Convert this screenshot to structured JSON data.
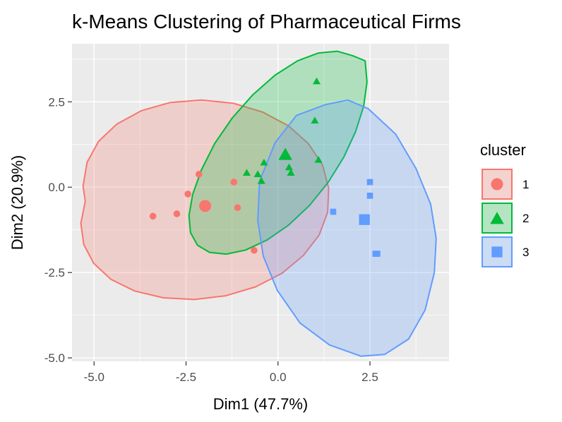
{
  "chart_data": {
    "type": "scatter",
    "title": "k-Means Clustering of Pharmaceutical Firms",
    "xlabel": "Dim1 (47.7%)",
    "ylabel": "Dim2 (20.9%)",
    "xlim": [
      -5.6,
      4.65
    ],
    "ylim": [
      -5.1,
      4.2
    ],
    "xticks": [
      -5.0,
      -2.5,
      0.0,
      2.5
    ],
    "xtick_labels": [
      "-5.0",
      "-2.5",
      "0.0",
      "2.5"
    ],
    "yticks": [
      -5.0,
      -2.5,
      0.0,
      2.5
    ],
    "ytick_labels": [
      "-5.0",
      "-2.5",
      "0.0",
      "2.5"
    ],
    "grid": true,
    "legend": {
      "title": "cluster",
      "position": "right"
    },
    "series": [
      {
        "name": "1",
        "color": "#F8766D",
        "marker": "circle",
        "points": [
          [
            -3.4,
            -0.85
          ],
          [
            -2.75,
            -0.78
          ],
          [
            -2.45,
            -0.2
          ],
          [
            -2.15,
            0.38
          ],
          [
            -1.2,
            0.15
          ],
          [
            -1.1,
            -0.6
          ],
          [
            -0.65,
            -1.85
          ]
        ],
        "center": [
          -1.98,
          -0.55
        ],
        "ellipse": [
          [
            -5.3,
            0.03
          ],
          [
            -5.19,
            0.73
          ],
          [
            -4.88,
            1.34
          ],
          [
            -4.38,
            1.85
          ],
          [
            -3.71,
            2.24
          ],
          [
            -2.93,
            2.48
          ],
          [
            -2.08,
            2.55
          ],
          [
            -1.22,
            2.46
          ],
          [
            -0.42,
            2.2
          ],
          [
            0.28,
            1.8
          ],
          [
            0.83,
            1.27
          ],
          [
            1.21,
            0.65
          ],
          [
            1.38,
            -0.03
          ],
          [
            1.35,
            -0.73
          ],
          [
            1.12,
            -1.4
          ],
          [
            0.69,
            -2.0
          ],
          [
            0.11,
            -2.52
          ],
          [
            -0.61,
            -2.92
          ],
          [
            -1.42,
            -3.18
          ],
          [
            -2.27,
            -3.29
          ],
          [
            -3.12,
            -3.24
          ],
          [
            -3.9,
            -3.04
          ],
          [
            -4.54,
            -2.7
          ],
          [
            -5.01,
            -2.23
          ],
          [
            -5.28,
            -1.68
          ],
          [
            -5.36,
            -1.06
          ],
          [
            -5.24,
            -0.41
          ],
          [
            -5.3,
            0.03
          ]
        ]
      },
      {
        "name": "2",
        "color": "#00BA38",
        "marker": "triangle",
        "points": [
          [
            -0.85,
            0.42
          ],
          [
            -0.55,
            0.38
          ],
          [
            -0.45,
            0.18
          ],
          [
            -0.38,
            0.72
          ],
          [
            0.3,
            0.58
          ],
          [
            0.35,
            0.42
          ],
          [
            1.0,
            1.95
          ],
          [
            1.05,
            3.1
          ],
          [
            1.1,
            0.8
          ]
        ],
        "center": [
          0.2,
          0.95
        ],
        "ellipse": [
          [
            2.37,
            3.7
          ],
          [
            2.42,
            3.08
          ],
          [
            2.33,
            2.37
          ],
          [
            2.11,
            1.63
          ],
          [
            1.79,
            0.88
          ],
          [
            1.37,
            0.15
          ],
          [
            0.86,
            -0.53
          ],
          [
            0.29,
            -1.11
          ],
          [
            -0.3,
            -1.55
          ],
          [
            -0.88,
            -1.84
          ],
          [
            -1.41,
            -1.96
          ],
          [
            -1.86,
            -1.91
          ],
          [
            -2.19,
            -1.7
          ],
          [
            -2.38,
            -1.33
          ],
          [
            -2.42,
            -0.83
          ],
          [
            -2.32,
            -0.21
          ],
          [
            -2.08,
            0.51
          ],
          [
            -1.72,
            1.28
          ],
          [
            -1.24,
            2.03
          ],
          [
            -0.68,
            2.71
          ],
          [
            -0.08,
            3.28
          ],
          [
            0.53,
            3.7
          ],
          [
            1.1,
            3.93
          ],
          [
            1.61,
            3.98
          ],
          [
            2.03,
            3.85
          ],
          [
            2.37,
            3.7
          ]
        ]
      },
      {
        "name": "3",
        "color": "#619CFF",
        "marker": "square",
        "points": [
          [
            1.5,
            -0.72
          ],
          [
            2.5,
            0.15
          ],
          [
            2.5,
            -0.25
          ],
          [
            2.65,
            -1.95
          ],
          [
            2.7,
            -1.95
          ]
        ],
        "center": [
          2.35,
          -0.95
        ],
        "ellipse": [
          [
            1.3,
            2.42
          ],
          [
            0.5,
            2.1
          ],
          [
            -0.08,
            1.3
          ],
          [
            -0.5,
            0.18
          ],
          [
            -0.55,
            -0.98
          ],
          [
            -0.4,
            -2.02
          ],
          [
            -0.02,
            -3.02
          ],
          [
            0.6,
            -3.98
          ],
          [
            1.4,
            -4.62
          ],
          [
            2.25,
            -4.95
          ],
          [
            2.9,
            -4.9
          ],
          [
            3.55,
            -4.45
          ],
          [
            4.0,
            -3.6
          ],
          [
            4.25,
            -2.5
          ],
          [
            4.3,
            -1.5
          ],
          [
            4.15,
            -0.5
          ],
          [
            3.75,
            0.55
          ],
          [
            3.2,
            1.55
          ],
          [
            2.45,
            2.3
          ],
          [
            1.9,
            2.55
          ],
          [
            1.3,
            2.42
          ]
        ]
      }
    ]
  }
}
